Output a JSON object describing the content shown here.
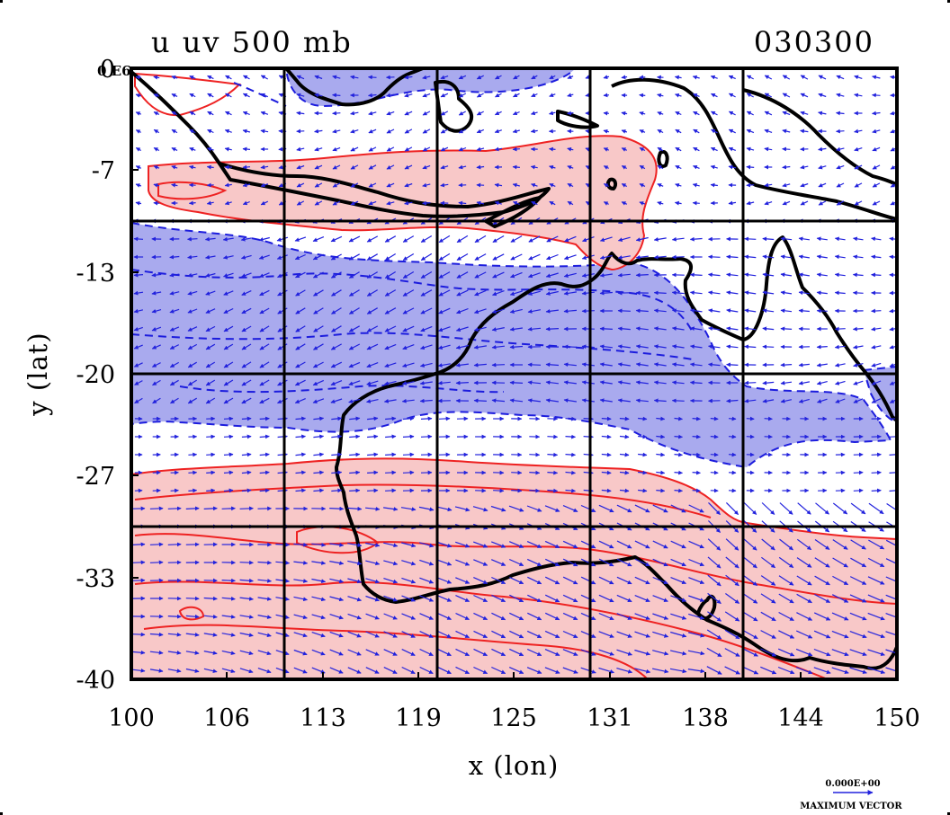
{
  "title_left": "u uv 500 mb",
  "title_right": "030300",
  "corner_tag": "0 E6",
  "xlabel": "x (lon)",
  "ylabel": "y (lat)",
  "xticks": [
    "100",
    "106",
    "113",
    "119",
    "125",
    "131",
    "138",
    "144",
    "150"
  ],
  "yticks": [
    "0",
    "-7",
    "-13",
    "-20",
    "-27",
    "-33",
    "-40"
  ],
  "legend": {
    "value": "0.000E+00",
    "label": "MAXIMUM VECTOR"
  },
  "colors": {
    "positive_fill": "#f8c8c8",
    "positive_contour": "#ee2222",
    "negative_fill": "#a9aaee",
    "negative_contour": "#1c1cdd",
    "vector": "#2222dd",
    "coast": "#000000",
    "grid": "#000000"
  },
  "map_data": {
    "type": "contour_vector_map",
    "field": "u",
    "vectors": "uv",
    "level": "500 mb",
    "lon_range": [
      100,
      150
    ],
    "lat_range": [
      -40,
      0
    ],
    "grid_lons": [
      110,
      120,
      130,
      140
    ],
    "grid_lats": [
      -10,
      -20,
      -30
    ],
    "regions": [
      "Indonesia",
      "Australia"
    ]
  }
}
